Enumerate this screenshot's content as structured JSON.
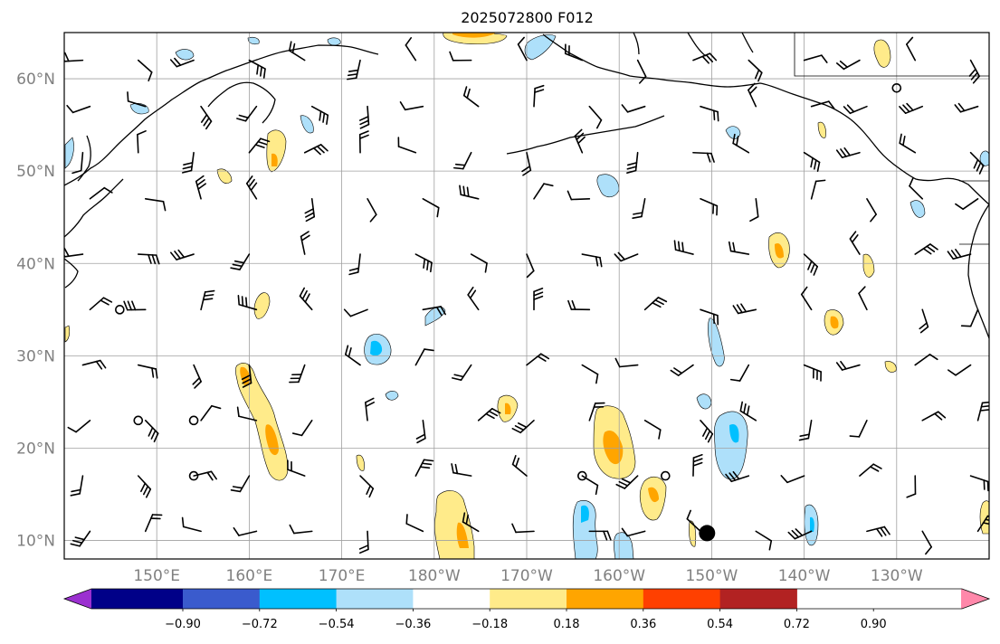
{
  "title": "2025072800 F012",
  "map": {
    "projection": "plate-carree",
    "lon_range_east": [
      140,
      240
    ],
    "lat_range": [
      8,
      65
    ],
    "grid": true,
    "coastline_color": "#000000"
  },
  "axes": {
    "lat_labels": [
      {
        "lat": 60,
        "label": "60°N"
      },
      {
        "lat": 50,
        "label": "50°N"
      },
      {
        "lat": 40,
        "label": "40°N"
      },
      {
        "lat": 30,
        "label": "30°N"
      },
      {
        "lat": 20,
        "label": "20°N"
      },
      {
        "lat": 10,
        "label": "10°N"
      }
    ],
    "lon_labels": [
      {
        "lon": 150,
        "label": "150°E"
      },
      {
        "lon": 160,
        "label": "160°E"
      },
      {
        "lon": 170,
        "label": "170°E"
      },
      {
        "lon": 180,
        "label": "180°W"
      },
      {
        "lon": 190,
        "label": "170°W"
      },
      {
        "lon": 200,
        "label": "160°W"
      },
      {
        "lon": 210,
        "label": "150°W"
      },
      {
        "lon": 220,
        "label": "140°W"
      },
      {
        "lon": 230,
        "label": "130°W"
      }
    ]
  },
  "colorbar": {
    "extend": "both",
    "colors": [
      "#9b30d0",
      "#000088",
      "#3a5bcd",
      "#00c0ff",
      "#aee0fa",
      "#ffffff",
      "#ffeb8a",
      "#ffa500",
      "#ff4000",
      "#b22222",
      "#ff88aa"
    ],
    "tick_labels": [
      "−0.90",
      "−0.72",
      "−0.54",
      "−0.36",
      "−0.18",
      "0.18",
      "0.36",
      "0.54",
      "0.72",
      "0.90"
    ]
  },
  "contour_fill": {
    "levels": [
      -0.36,
      -0.18,
      0.18,
      0.36
    ],
    "colors": {
      "neg_light": "#aee0fa",
      "neg_mid": "#00c0ff",
      "pos_light": "#ffeb8a",
      "pos_mid": "#ffa500"
    }
  },
  "barbs": {
    "lons": [
      142,
      148,
      154,
      160,
      166,
      172,
      178,
      184,
      190,
      196,
      202,
      208,
      214,
      220,
      226,
      232,
      238
    ],
    "lats": [
      62,
      57,
      52,
      47,
      41,
      35,
      29,
      23,
      17,
      11
    ]
  },
  "markers": [
    {
      "lon": 209.5,
      "lat": 10.8,
      "type": "large-dot"
    }
  ],
  "calm_circles": [
    {
      "lon": 146,
      "lat": 35
    },
    {
      "lon": 148,
      "lat": 23
    },
    {
      "lon": 154,
      "lat": 23
    },
    {
      "lon": 154,
      "lat": 17
    },
    {
      "lon": 196,
      "lat": 17
    },
    {
      "lon": 205,
      "lat": 17
    },
    {
      "lon": 230,
      "lat": 59
    }
  ]
}
